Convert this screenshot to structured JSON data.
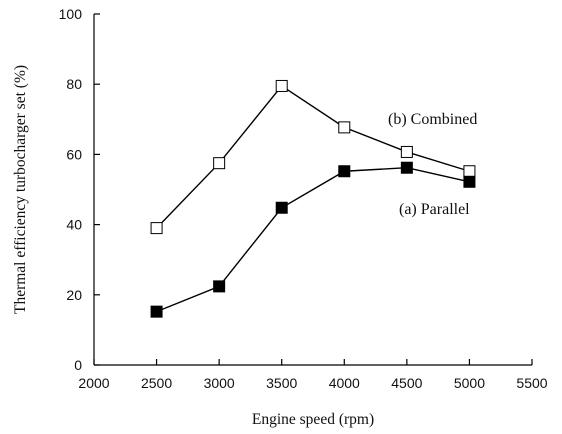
{
  "chart_data": {
    "type": "line",
    "xlabel": "Engine speed (rpm)",
    "ylabel": "Thermal efficiency turbocharger set (%)",
    "xlim": [
      2000,
      5500
    ],
    "ylim": [
      0,
      100
    ],
    "xticks": [
      2000,
      2500,
      3000,
      3500,
      4000,
      4500,
      5000,
      5500
    ],
    "yticks": [
      0,
      20,
      40,
      60,
      80,
      100
    ],
    "grid": false,
    "legend": "inline labels",
    "series": [
      {
        "name": "(b) Combined",
        "marker": "open-square",
        "color": "#000000",
        "x": [
          2500,
          3000,
          3500,
          4000,
          4500,
          5000
        ],
        "y": [
          39,
          57.5,
          79.5,
          67.7,
          60.7,
          55.2
        ]
      },
      {
        "name": "(a) Parallel",
        "marker": "filled-square",
        "color": "#000000",
        "x": [
          2500,
          3000,
          3500,
          4000,
          4500,
          5000
        ],
        "y": [
          15.2,
          22.4,
          44.8,
          55.2,
          56.2,
          52.2
        ]
      }
    ]
  }
}
